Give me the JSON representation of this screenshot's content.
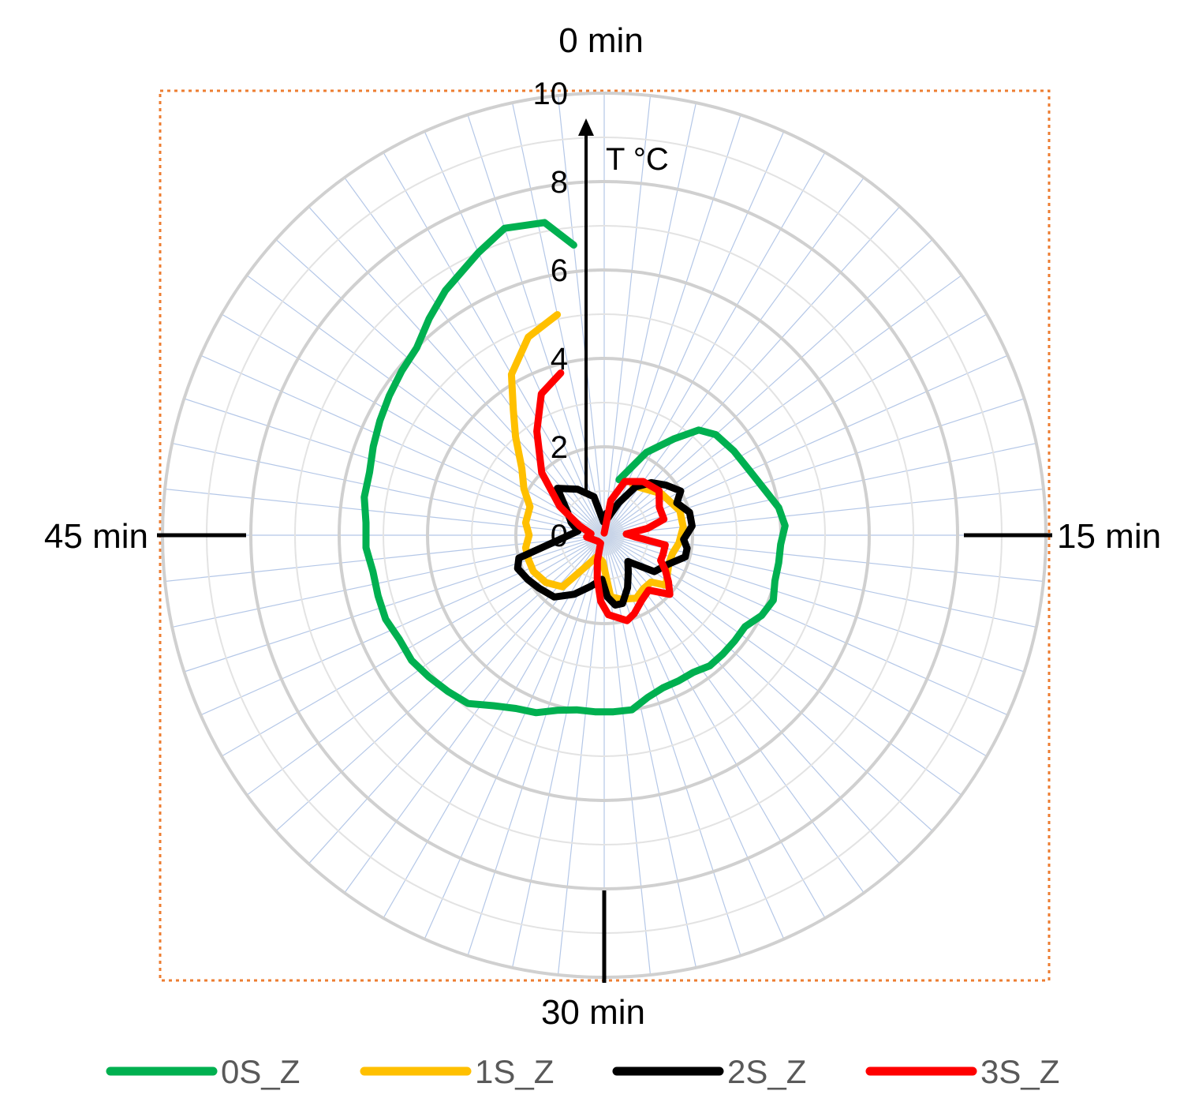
{
  "chart_data": {
    "type": "polar-line",
    "ylabel": "T °C",
    "rlim": [
      0,
      10
    ],
    "radial_ticks": [
      "0",
      "2",
      "4",
      "6",
      "8",
      "10"
    ],
    "direction_labels": {
      "top": "0 min",
      "right": "15 min",
      "bottom": "30 min",
      "left": "45 min"
    },
    "spokes": 60,
    "grid": true,
    "legend_position": "bottom",
    "series": [
      {
        "name": "0S_Z",
        "color": "#00B050",
        "points": [
          [
            2.5,
            1.3
          ],
          [
            4.5,
            2.1
          ],
          [
            6.0,
            2.7
          ],
          [
            7.0,
            3.2
          ],
          [
            8.0,
            3.4
          ],
          [
            9.5,
            3.5
          ],
          [
            11.0,
            3.6
          ],
          [
            12.5,
            3.8
          ],
          [
            13.5,
            4.0
          ],
          [
            14.5,
            4.1
          ],
          [
            15.5,
            4.0
          ],
          [
            16.5,
            4.0
          ],
          [
            17.5,
            4.0
          ],
          [
            18.5,
            4.1
          ],
          [
            19.5,
            4.0
          ],
          [
            20.5,
            3.8
          ],
          [
            21.5,
            3.8
          ],
          [
            22.5,
            3.8
          ],
          [
            23.5,
            3.8
          ],
          [
            24.5,
            3.7
          ],
          [
            25.5,
            3.7
          ],
          [
            26.5,
            3.7
          ],
          [
            27.5,
            3.8
          ],
          [
            28.5,
            4.0
          ],
          [
            29.5,
            4.0
          ],
          [
            30.5,
            4.0
          ],
          [
            31.5,
            4.0
          ],
          [
            32.5,
            4.1
          ],
          [
            33.5,
            4.3
          ],
          [
            34.5,
            4.4
          ],
          [
            35.5,
            4.6
          ],
          [
            36.5,
            4.9
          ],
          [
            37.5,
            5.0
          ],
          [
            38.5,
            5.1
          ],
          [
            39.5,
            5.2
          ],
          [
            40.5,
            5.2
          ],
          [
            41.5,
            5.3
          ],
          [
            42.5,
            5.3
          ],
          [
            43.5,
            5.3
          ],
          [
            44.5,
            5.4
          ],
          [
            45.5,
            5.4
          ],
          [
            46.5,
            5.5
          ],
          [
            47.5,
            5.5
          ],
          [
            48.5,
            5.6
          ],
          [
            49.5,
            5.7
          ],
          [
            50.5,
            5.8
          ],
          [
            51.5,
            5.9
          ],
          [
            52.5,
            6.0
          ],
          [
            53.5,
            6.3
          ],
          [
            54.5,
            6.6
          ],
          [
            56.0,
            7.0
          ],
          [
            57.0,
            7.3
          ],
          [
            58.2,
            7.2
          ],
          [
            59.0,
            6.6
          ]
        ]
      },
      {
        "name": "1S_Z",
        "color": "#FFC000",
        "points": [
          [
            5.0,
            1.3
          ],
          [
            9.0,
            1.6
          ],
          [
            12.0,
            1.8
          ],
          [
            14.0,
            1.8
          ],
          [
            16.0,
            1.7
          ],
          [
            17.5,
            1.6
          ],
          [
            19.0,
            1.6
          ],
          [
            20.5,
            1.7
          ],
          [
            21.5,
            1.8
          ],
          [
            22.5,
            1.5
          ],
          [
            24.0,
            1.5
          ],
          [
            25.5,
            1.6
          ],
          [
            27.5,
            1.5
          ],
          [
            29.0,
            1.4
          ],
          [
            30.5,
            0.6
          ],
          [
            33.0,
            0.5
          ],
          [
            35.0,
            0.8
          ],
          [
            36.5,
            1.5
          ],
          [
            38.5,
            1.7
          ],
          [
            40.5,
            1.8
          ],
          [
            42.0,
            1.8
          ],
          [
            43.5,
            1.8
          ],
          [
            45.0,
            1.7
          ],
          [
            46.5,
            1.8
          ],
          [
            48.5,
            1.8
          ],
          [
            50.0,
            2.1
          ],
          [
            51.5,
            2.4
          ],
          [
            53.0,
            3.0
          ],
          [
            54.0,
            3.5
          ],
          [
            55.0,
            4.2
          ],
          [
            56.5,
            4.8
          ],
          [
            58.0,
            5.1
          ]
        ]
      },
      {
        "name": "2S_Z",
        "color": "#000000",
        "points": [
          [
            1.0,
            0.5
          ],
          [
            2.0,
            0.4
          ],
          [
            4.0,
            0.8
          ],
          [
            5.5,
            1.3
          ],
          [
            7.0,
            1.6
          ],
          [
            8.5,
            1.8
          ],
          [
            10.0,
            2.0
          ],
          [
            11.0,
            1.8
          ],
          [
            12.5,
            2.0
          ],
          [
            14.0,
            2.0
          ],
          [
            15.5,
            1.8
          ],
          [
            16.5,
            1.9
          ],
          [
            17.5,
            1.9
          ],
          [
            19.0,
            1.6
          ],
          [
            21.0,
            1.4
          ],
          [
            23.0,
            0.8
          ],
          [
            24.5,
            1.0
          ],
          [
            26.0,
            1.3
          ],
          [
            27.5,
            1.6
          ],
          [
            28.5,
            1.6
          ],
          [
            29.5,
            1.4
          ],
          [
            30.5,
            1.0
          ],
          [
            32.5,
            1.2
          ],
          [
            34.5,
            1.5
          ],
          [
            36.5,
            1.8
          ],
          [
            38.5,
            1.9
          ],
          [
            40.0,
            2.0
          ],
          [
            41.5,
            2.1
          ],
          [
            42.5,
            2.0
          ],
          [
            44.5,
            0.9
          ],
          [
            46.5,
            0.6
          ],
          [
            48.5,
            0.8
          ],
          [
            50.5,
            1.0
          ],
          [
            52.5,
            1.5
          ],
          [
            55.0,
            1.2
          ],
          [
            57.5,
            0.9
          ],
          [
            59.5,
            0.3
          ]
        ]
      },
      {
        "name": "3S_Z",
        "color": "#FF0000",
        "points": [
          [
            0.0,
            0.05
          ],
          [
            1.8,
            0.8
          ],
          [
            3.5,
            1.3
          ],
          [
            6.0,
            1.5
          ],
          [
            8.5,
            1.6
          ],
          [
            10.5,
            1.4
          ],
          [
            12.5,
            1.4
          ],
          [
            13.5,
            1.0
          ],
          [
            14.5,
            0.5
          ],
          [
            15.5,
            0.7
          ],
          [
            16.5,
            1.4
          ],
          [
            18.0,
            1.4
          ],
          [
            19.0,
            1.4
          ],
          [
            20.0,
            1.6
          ],
          [
            21.0,
            1.8
          ],
          [
            22.0,
            2.0
          ],
          [
            23.5,
            1.6
          ],
          [
            25.0,
            1.7
          ],
          [
            26.5,
            1.9
          ],
          [
            27.5,
            2.0
          ],
          [
            29.5,
            1.8
          ],
          [
            30.5,
            1.5
          ],
          [
            31.5,
            1.0
          ],
          [
            32.5,
            0.6
          ],
          [
            34.0,
            0.2
          ],
          [
            38.0,
            0.2
          ],
          [
            44.0,
            0.4
          ],
          [
            46.0,
            0.3
          ],
          [
            48.5,
            0.6
          ],
          [
            50.5,
            1.2
          ],
          [
            52.5,
            2.0
          ],
          [
            54.5,
            2.8
          ],
          [
            56.0,
            3.5
          ],
          [
            57.5,
            3.8
          ]
        ]
      }
    ]
  }
}
